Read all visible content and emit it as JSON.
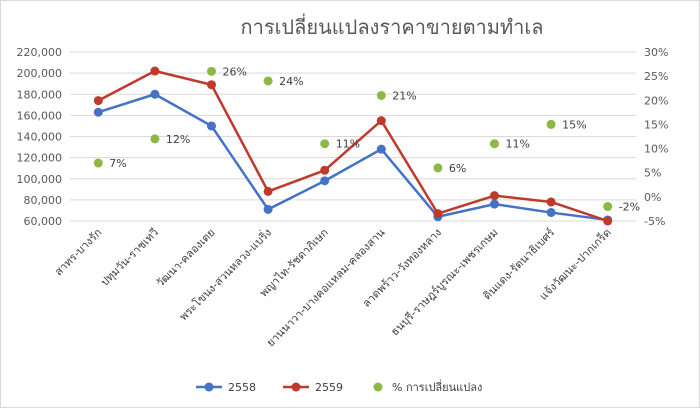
{
  "chart_data": {
    "type": "line",
    "title": "การเปลี่ยนแปลงราคาขายตามทำเล",
    "categories": [
      "สาทร-บางรัก",
      "ปทุมวัน-ราชเทวี",
      "วัฒนา-คลองเตย",
      "พระโขนง-สวนหลวง-แบริ่ง",
      "พญาไท-รัชดาภิเษก",
      "ยานนาวา-บางคอแหลม-คลองสาน",
      "ลาดพร้าว-วังทองหลาง",
      "ธนบุรี-ราษฎร์บูรณะ-เพชรเกษม",
      "ดินแดง-รัตนาธิเบศร์",
      "แจ้งวัฒนะ-ปากเกร็ด"
    ],
    "series": [
      {
        "name": "2558",
        "axis": "left",
        "color": "#4472C4",
        "values": [
          163000,
          180000,
          150000,
          71000,
          98000,
          128000,
          64000,
          76000,
          68000,
          61000
        ]
      },
      {
        "name": "2559",
        "axis": "left",
        "color": "#C0392B",
        "values": [
          174000,
          202000,
          189000,
          88000,
          108000,
          155000,
          67000,
          84000,
          78000,
          60000
        ]
      },
      {
        "name": "% การเปลี่ยนแปลง",
        "axis": "right",
        "marker": "dot",
        "color": "#8DB843",
        "values": [
          7,
          12,
          26,
          24,
          11,
          21,
          6,
          11,
          15,
          -2
        ]
      }
    ],
    "data_labels": [
      "7%",
      "12%",
      "26%",
      "24%",
      "11%",
      "21%",
      "6%",
      "11%",
      "15%",
      "-2%"
    ],
    "y_left": {
      "ylim": [
        60000,
        220000
      ],
      "ticks": [
        60000,
        80000,
        100000,
        120000,
        140000,
        160000,
        180000,
        200000,
        220000
      ],
      "tick_labels": [
        "60,000",
        "80,000",
        "100,000",
        "120,000",
        "140,000",
        "160,000",
        "180,000",
        "200,000",
        "220,000"
      ]
    },
    "y_right": {
      "ylim": [
        -5,
        30
      ],
      "ticks": [
        -5,
        0,
        5,
        10,
        15,
        20,
        25,
        30
      ],
      "tick_labels": [
        "-5%",
        "0%",
        "5%",
        "10%",
        "15%",
        "20%",
        "25%",
        "30%"
      ]
    },
    "grid": true,
    "legend": [
      "2558",
      "2559",
      "% การเปลี่ยนแปลง"
    ],
    "legend_position": "bottom",
    "gridline_color": "#D9D9D9"
  }
}
